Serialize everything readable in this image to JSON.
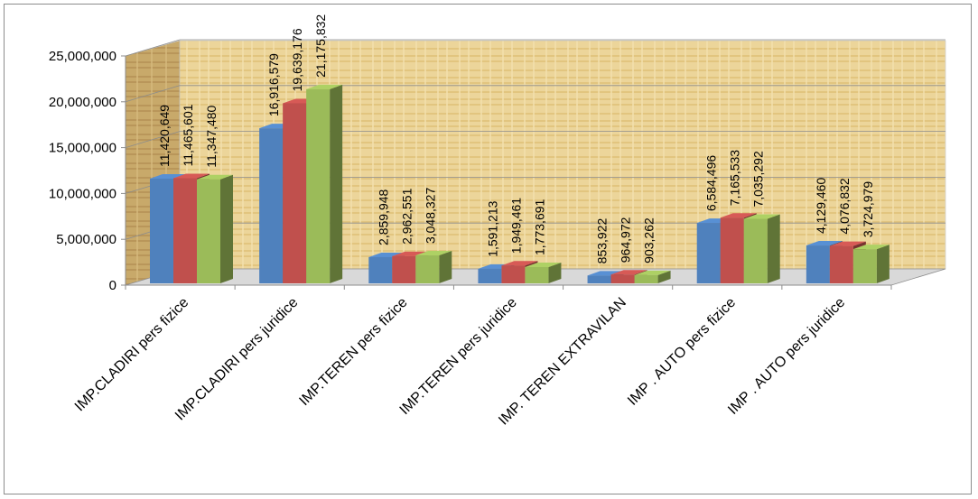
{
  "chart_data": {
    "type": "bar",
    "title": "",
    "xlabel": "",
    "ylabel": "",
    "ylim": [
      0,
      25000000
    ],
    "y_ticks": [
      "0",
      "5,000,000",
      "10,000,000",
      "15,000,000",
      "20,000,000",
      "25,000,000"
    ],
    "y_tick_values": [
      0,
      5000000,
      10000000,
      15000000,
      20000000,
      25000000
    ],
    "grid": true,
    "legend": "none",
    "categories": [
      "IMP.CLADIRI pers fizice",
      "IMP.CLADIRI pers juridice",
      "IMP.TEREN pers fizice",
      "IMP.TEREN pers juridice",
      "IMP. TEREN EXTRAVILAN",
      "IMP . AUTO pers fizice",
      "IMP . AUTO pers juridice"
    ],
    "series": [
      {
        "color": "#4f81bd",
        "values": [
          11420649,
          16916579,
          2859948,
          1591213,
          853922,
          6584496,
          4129460
        ],
        "labels": [
          "11,420,649",
          "16,916,579",
          "2,859,948",
          "1,591,213",
          "853,922",
          "6,584,496",
          "4,129,460"
        ]
      },
      {
        "color": "#c0504d",
        "values": [
          11465601,
          19639176,
          2962551,
          1949461,
          964972,
          7165533,
          4076832
        ],
        "labels": [
          "11,465,601",
          "19,639,176",
          "2,962,551",
          "1,949,461",
          "964,972",
          "7,165,533",
          "4,076,832"
        ]
      },
      {
        "color": "#9bbb59",
        "values": [
          11347480,
          21175832,
          3048327,
          1773691,
          903262,
          7035292,
          3724979
        ],
        "labels": [
          "11,347,480",
          "21,175,832",
          "3,048,327",
          "1,773,691",
          "903,262",
          "7,035,292",
          "3,724,979"
        ]
      }
    ]
  }
}
